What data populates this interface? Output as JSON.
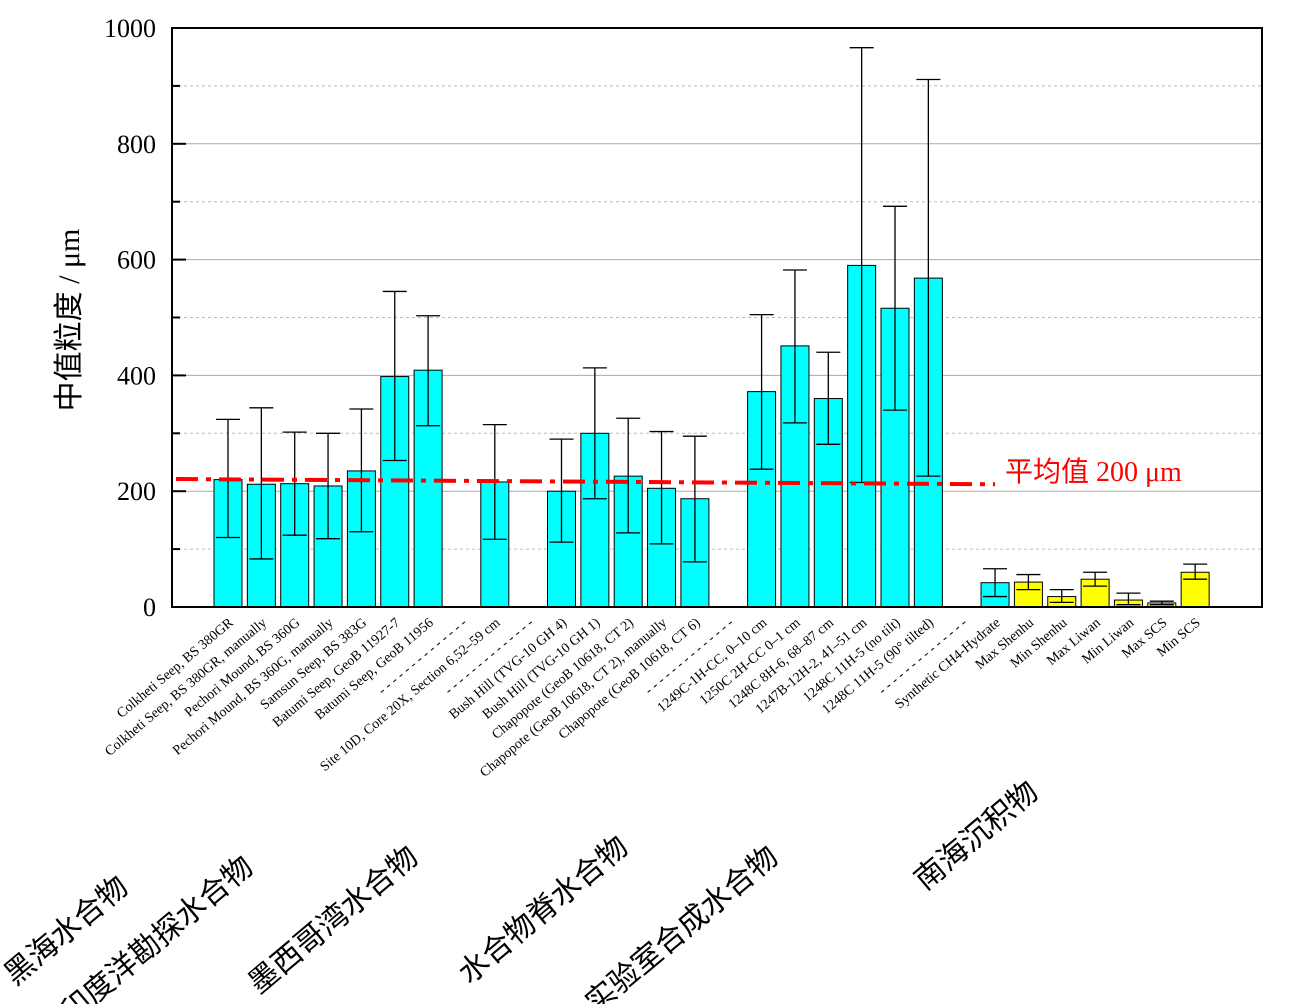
{
  "chart_data": {
    "type": "bar",
    "y_label": "中值粒度 / μm",
    "categories": [
      "Colkheti Seep, BS 380GR",
      "Colkheti Seep, BS 380GR, manually",
      "Pechori Mound, BS 360G",
      "Pechori Mound, BS 360G, manually",
      "Samsun Seep, BS 383G",
      "Batumi Seep, GeoB 11927-7",
      "Batumi Seep, GeoB 11956",
      "- - - - - - - - - - - - - -",
      "Site 10D, Core 20X, Section 6,52–59 cm",
      "- - - - - - - - - - - - - -",
      "Bush Hill (TVG-10 GH 4)",
      "Bush Hill (TVG-10 GH 1)",
      "Chapopote (GeoB 10618, CT 2)",
      "Chapopote (GeoB 10618, CT 2), manually",
      "Chapopote (GeoB 10618, CT 6)",
      "- - - - - - - - - - - - - -",
      "1249C-1H-CC, 0–10 cm",
      "1250C 2H-CC 0–1 cm",
      "1248C 8H-6, 68–87 cm",
      "1247B-12H-2, 41–51 cm",
      "1248C 11H-5 (no tilt)",
      "1248C 11H-5 (90° tilted)",
      "- - - - - - - - - - - - - -",
      "Synthetic CH4-Hydrate",
      "Max Shenhu",
      "Min Shenhu",
      "Max Liwan",
      "Min Liwan",
      "Max SCS",
      "Min SCS"
    ],
    "values": [
      220,
      212,
      213,
      209,
      235,
      398,
      409,
      null,
      216,
      null,
      200,
      300,
      226,
      205,
      187,
      null,
      372,
      451,
      360,
      590,
      516,
      568,
      null,
      42,
      43,
      18,
      48,
      12,
      7,
      60
    ],
    "lower": [
      120,
      83,
      124,
      118,
      130,
      253,
      313,
      null,
      117,
      null,
      112,
      187,
      128,
      109,
      78,
      null,
      238,
      318,
      281,
      215,
      340,
      226,
      null,
      18,
      30,
      8,
      36,
      4,
      4,
      48
    ],
    "upper": [
      324,
      344,
      302,
      300,
      342,
      545,
      503,
      null,
      315,
      null,
      290,
      413,
      326,
      303,
      295,
      null,
      505,
      582,
      440,
      966,
      692,
      911,
      null,
      66,
      56,
      30,
      60,
      24,
      10,
      74
    ],
    "colors": [
      "#00ffff",
      "#00ffff",
      "#00ffff",
      "#00ffff",
      "#00ffff",
      "#00ffff",
      "#00ffff",
      null,
      "#00ffff",
      null,
      "#00ffff",
      "#00ffff",
      "#00ffff",
      "#00ffff",
      "#00ffff",
      null,
      "#00ffff",
      "#00ffff",
      "#00ffff",
      "#00ffff",
      "#00ffff",
      "#00ffff",
      null,
      "#00ffff",
      "#ffff00",
      "#ffff00",
      "#ffff00",
      "#ffff00",
      "#ffff00",
      "#ffff00"
    ],
    "ylim": [
      0,
      1000
    ],
    "yticks": [
      0,
      200,
      400,
      600,
      800,
      1000
    ],
    "minor_yticks": [
      100,
      300,
      500,
      700,
      900
    ],
    "grid": true,
    "mean_line": {
      "label": "平均值 200 μm",
      "y": [
        221,
        212
      ],
      "color": "#ff0000"
    },
    "groups": [
      "黑海水合物",
      "印度洋勘探水合物",
      "墨西哥湾水合物",
      "水合物脊水合物",
      "实验室合成水合物",
      "南海沉积物"
    ]
  }
}
